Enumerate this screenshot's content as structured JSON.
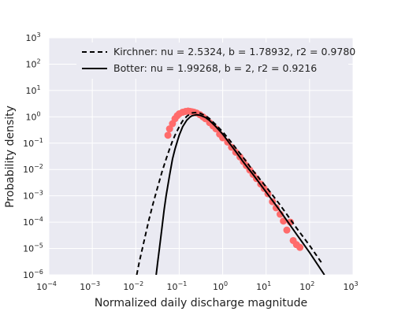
{
  "chart_data": {
    "type": "line",
    "title": "",
    "xlabel": "Normalized daily discharge magnitude",
    "ylabel": "Probability density",
    "xscale": "log",
    "yscale": "log",
    "xlim": [
      0.0001,
      1000
    ],
    "ylim": [
      1e-06,
      1000
    ],
    "x_ticks": [
      -4,
      -3,
      -2,
      -1,
      0,
      1,
      2,
      3
    ],
    "y_ticks": [
      -6,
      -5,
      -4,
      -3,
      -2,
      -1,
      0,
      1,
      2,
      3
    ],
    "tick_base": "10",
    "grid": true,
    "legend_position": "top-right",
    "background": "#eaeaf2",
    "series": [
      {
        "name": "Kirchner: nu = 2.5324, b = 1.78932, r2 = 0.9780",
        "kind": "line",
        "style": "dashed",
        "color": "#000000",
        "x": [
          0.0105,
          0.012,
          0.015,
          0.02,
          0.025,
          0.03,
          0.04,
          0.05,
          0.06,
          0.07,
          0.08,
          0.1,
          0.12,
          0.15,
          0.18,
          0.2,
          0.25,
          0.3,
          0.4,
          0.5,
          0.7,
          1,
          1.5,
          2,
          3,
          5,
          10,
          20,
          50,
          100,
          200
        ],
        "y": [
          1e-06,
          3e-06,
          1.5e-05,
          0.00012,
          0.0005,
          0.0015,
          0.008,
          0.025,
          0.06,
          0.12,
          0.2,
          0.42,
          0.7,
          1.05,
          1.3,
          1.4,
          1.45,
          1.38,
          1.1,
          0.85,
          0.5,
          0.27,
          0.12,
          0.065,
          0.028,
          0.009,
          0.0022,
          0.0005,
          6e-05,
          1.3e-05,
          2.5e-06
        ]
      },
      {
        "name": "Botter: nu = 1.99268, b = 2, r2 = 0.9216",
        "kind": "line",
        "style": "solid",
        "color": "#000000",
        "x": [
          0.0295,
          0.032,
          0.035,
          0.04,
          0.045,
          0.05,
          0.06,
          0.07,
          0.08,
          0.1,
          0.12,
          0.15,
          0.18,
          0.2,
          0.25,
          0.3,
          0.4,
          0.5,
          0.7,
          1,
          1.5,
          2,
          3,
          5,
          10,
          20,
          50,
          100,
          220
        ],
        "y": [
          1e-06,
          3e-06,
          1e-05,
          6e-05,
          0.0003,
          0.001,
          0.006,
          0.025,
          0.06,
          0.2,
          0.42,
          0.75,
          1.0,
          1.1,
          1.2,
          1.15,
          0.95,
          0.72,
          0.42,
          0.22,
          0.09,
          0.048,
          0.019,
          0.0065,
          0.0014,
          0.0003,
          3.5e-05,
          7e-06,
          1e-06
        ]
      },
      {
        "name": "",
        "kind": "scatter",
        "color": "#ff6b6b",
        "x": [
          0.055,
          0.06,
          0.07,
          0.08,
          0.09,
          0.1,
          0.12,
          0.14,
          0.16,
          0.18,
          0.2,
          0.22,
          0.25,
          0.3,
          0.35,
          0.4,
          0.5,
          0.6,
          0.7,
          0.85,
          1,
          1.3,
          1.6,
          2,
          2.5,
          3,
          3.5,
          4.2,
          5,
          6,
          7.5,
          9,
          11,
          14,
          17,
          21,
          25,
          30,
          36,
          42,
          50,
          60
        ],
        "y": [
          0.2,
          0.35,
          0.55,
          0.85,
          1.1,
          1.3,
          1.5,
          1.6,
          1.65,
          1.6,
          1.55,
          1.5,
          1.4,
          1.2,
          1.0,
          0.85,
          0.6,
          0.45,
          0.35,
          0.22,
          0.16,
          0.11,
          0.07,
          0.045,
          0.03,
          0.02,
          0.014,
          0.0095,
          0.0065,
          0.0045,
          0.0028,
          0.0019,
          0.0012,
          0.0006,
          0.00035,
          0.0002,
          0.00011,
          5e-05,
          0.0001,
          2e-05,
          1.4e-05,
          1.1e-05
        ]
      }
    ]
  }
}
